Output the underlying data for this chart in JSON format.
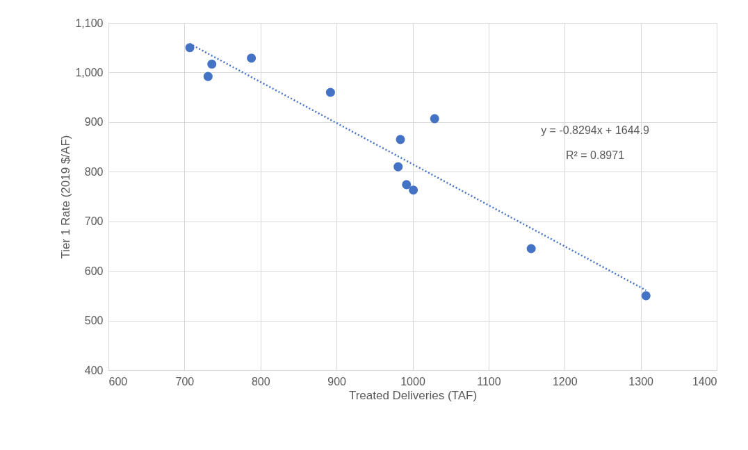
{
  "chart_data": {
    "type": "scatter",
    "xlabel": "Treated Deliveries (TAF)",
    "ylabel": "Tier 1 Rate (2019 $/AF)",
    "series": [
      {
        "color": "#4472c4",
        "x": [
          707,
          736,
          731,
          788,
          892,
          1029,
          984,
          981,
          992,
          1001,
          1156,
          1307
        ],
        "values": [
          1050,
          1017,
          992,
          1029,
          960,
          907,
          865,
          810,
          774,
          763,
          645,
          550
        ],
        "marker": "circle"
      },
      {
        "type": "line",
        "color": "#4472c4",
        "x": [
          707,
          1307
        ],
        "values": [
          1058,
          561
        ],
        "line_style": "dotted"
      }
    ],
    "annotations": [
      "y = -0.8294x + 1644.9",
      "R² = 0.8971"
    ],
    "xlim": [
      600,
      1400
    ],
    "xticks": [
      600,
      700,
      800,
      900,
      1000,
      1100,
      1200,
      1300,
      1400
    ],
    "ylim": [
      400,
      1100
    ],
    "yticks": [
      400,
      500,
      600,
      700,
      800,
      900,
      {
        "value": 1000,
        "label": "1,000"
      },
      {
        "value": 1100,
        "label": "1,100"
      }
    ],
    "grid": true
  }
}
